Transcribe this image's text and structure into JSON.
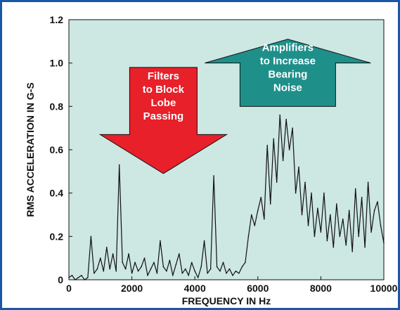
{
  "chart_data": {
    "type": "line",
    "title": "",
    "xlabel": "FREQUENCY IN Hz",
    "ylabel": "RMS ACCELERATION IN G-S",
    "xlim": [
      0,
      10000
    ],
    "ylim": [
      0,
      1.2
    ],
    "x_ticks": [
      "0",
      "2000",
      "4000",
      "6000",
      "8000",
      "10000"
    ],
    "y_ticks": [
      "0",
      "0.2",
      "0.4",
      "0.6",
      "0.8",
      "1.0",
      "1.2"
    ],
    "grid": false,
    "series": [
      {
        "x": [
          0,
          100,
          200,
          300,
          400,
          500,
          600,
          700,
          800,
          900,
          1000,
          1100,
          1200,
          1300,
          1400,
          1500,
          1600,
          1700,
          1800,
          1900,
          2000,
          2100,
          2200,
          2300,
          2400,
          2500,
          2600,
          2700,
          2800,
          2900,
          3000,
          3100,
          3200,
          3300,
          3400,
          3500,
          3600,
          3700,
          3800,
          3900,
          4000,
          4100,
          4200,
          4300,
          4400,
          4500,
          4600,
          4700,
          4800,
          4900,
          5000,
          5100,
          5200,
          5300,
          5400,
          5500,
          5600,
          5700,
          5800,
          5900,
          6000,
          6100,
          6200,
          6300,
          6400,
          6500,
          6600,
          6700,
          6800,
          6900,
          7000,
          7100,
          7200,
          7300,
          7400,
          7500,
          7600,
          7700,
          7800,
          7900,
          8000,
          8100,
          8200,
          8300,
          8400,
          8500,
          8600,
          8700,
          8800,
          8900,
          9000,
          9100,
          9200,
          9300,
          9400,
          9500,
          9600,
          9700,
          9800,
          9900,
          10000
        ],
        "values": [
          0.01,
          0.02,
          0.0,
          0.01,
          0.02,
          0.0,
          0.01,
          0.2,
          0.03,
          0.05,
          0.1,
          0.04,
          0.15,
          0.05,
          0.12,
          0.04,
          0.53,
          0.08,
          0.05,
          0.12,
          0.03,
          0.08,
          0.04,
          0.06,
          0.1,
          0.02,
          0.05,
          0.08,
          0.03,
          0.18,
          0.06,
          0.04,
          0.09,
          0.02,
          0.07,
          0.12,
          0.03,
          0.05,
          0.02,
          0.08,
          0.04,
          0.01,
          0.06,
          0.18,
          0.03,
          0.05,
          0.48,
          0.06,
          0.04,
          0.08,
          0.03,
          0.05,
          0.02,
          0.04,
          0.03,
          0.06,
          0.08,
          0.2,
          0.3,
          0.25,
          0.32,
          0.38,
          0.28,
          0.62,
          0.35,
          0.65,
          0.45,
          0.76,
          0.55,
          0.74,
          0.6,
          0.7,
          0.4,
          0.52,
          0.3,
          0.45,
          0.25,
          0.4,
          0.2,
          0.33,
          0.22,
          0.4,
          0.18,
          0.3,
          0.15,
          0.35,
          0.2,
          0.28,
          0.16,
          0.32,
          0.13,
          0.42,
          0.2,
          0.38,
          0.15,
          0.45,
          0.22,
          0.32,
          0.36,
          0.25,
          0.17
        ]
      }
    ],
    "annotations": [
      {
        "lines": [
          "Filters",
          "to Block",
          "Lobe",
          "Passing"
        ],
        "direction": "down",
        "color": "#e8202a"
      },
      {
        "lines": [
          "Amplifiers",
          "to Increase",
          "Bearing",
          "Noise"
        ],
        "direction": "up",
        "color": "#1f8f8a"
      }
    ],
    "colors": {
      "plot_bg": "#cde7e3",
      "frame_border": "#1a56a8",
      "line": "#111111",
      "down_arrow": "#e8202a",
      "up_arrow": "#1f8f8a"
    }
  }
}
